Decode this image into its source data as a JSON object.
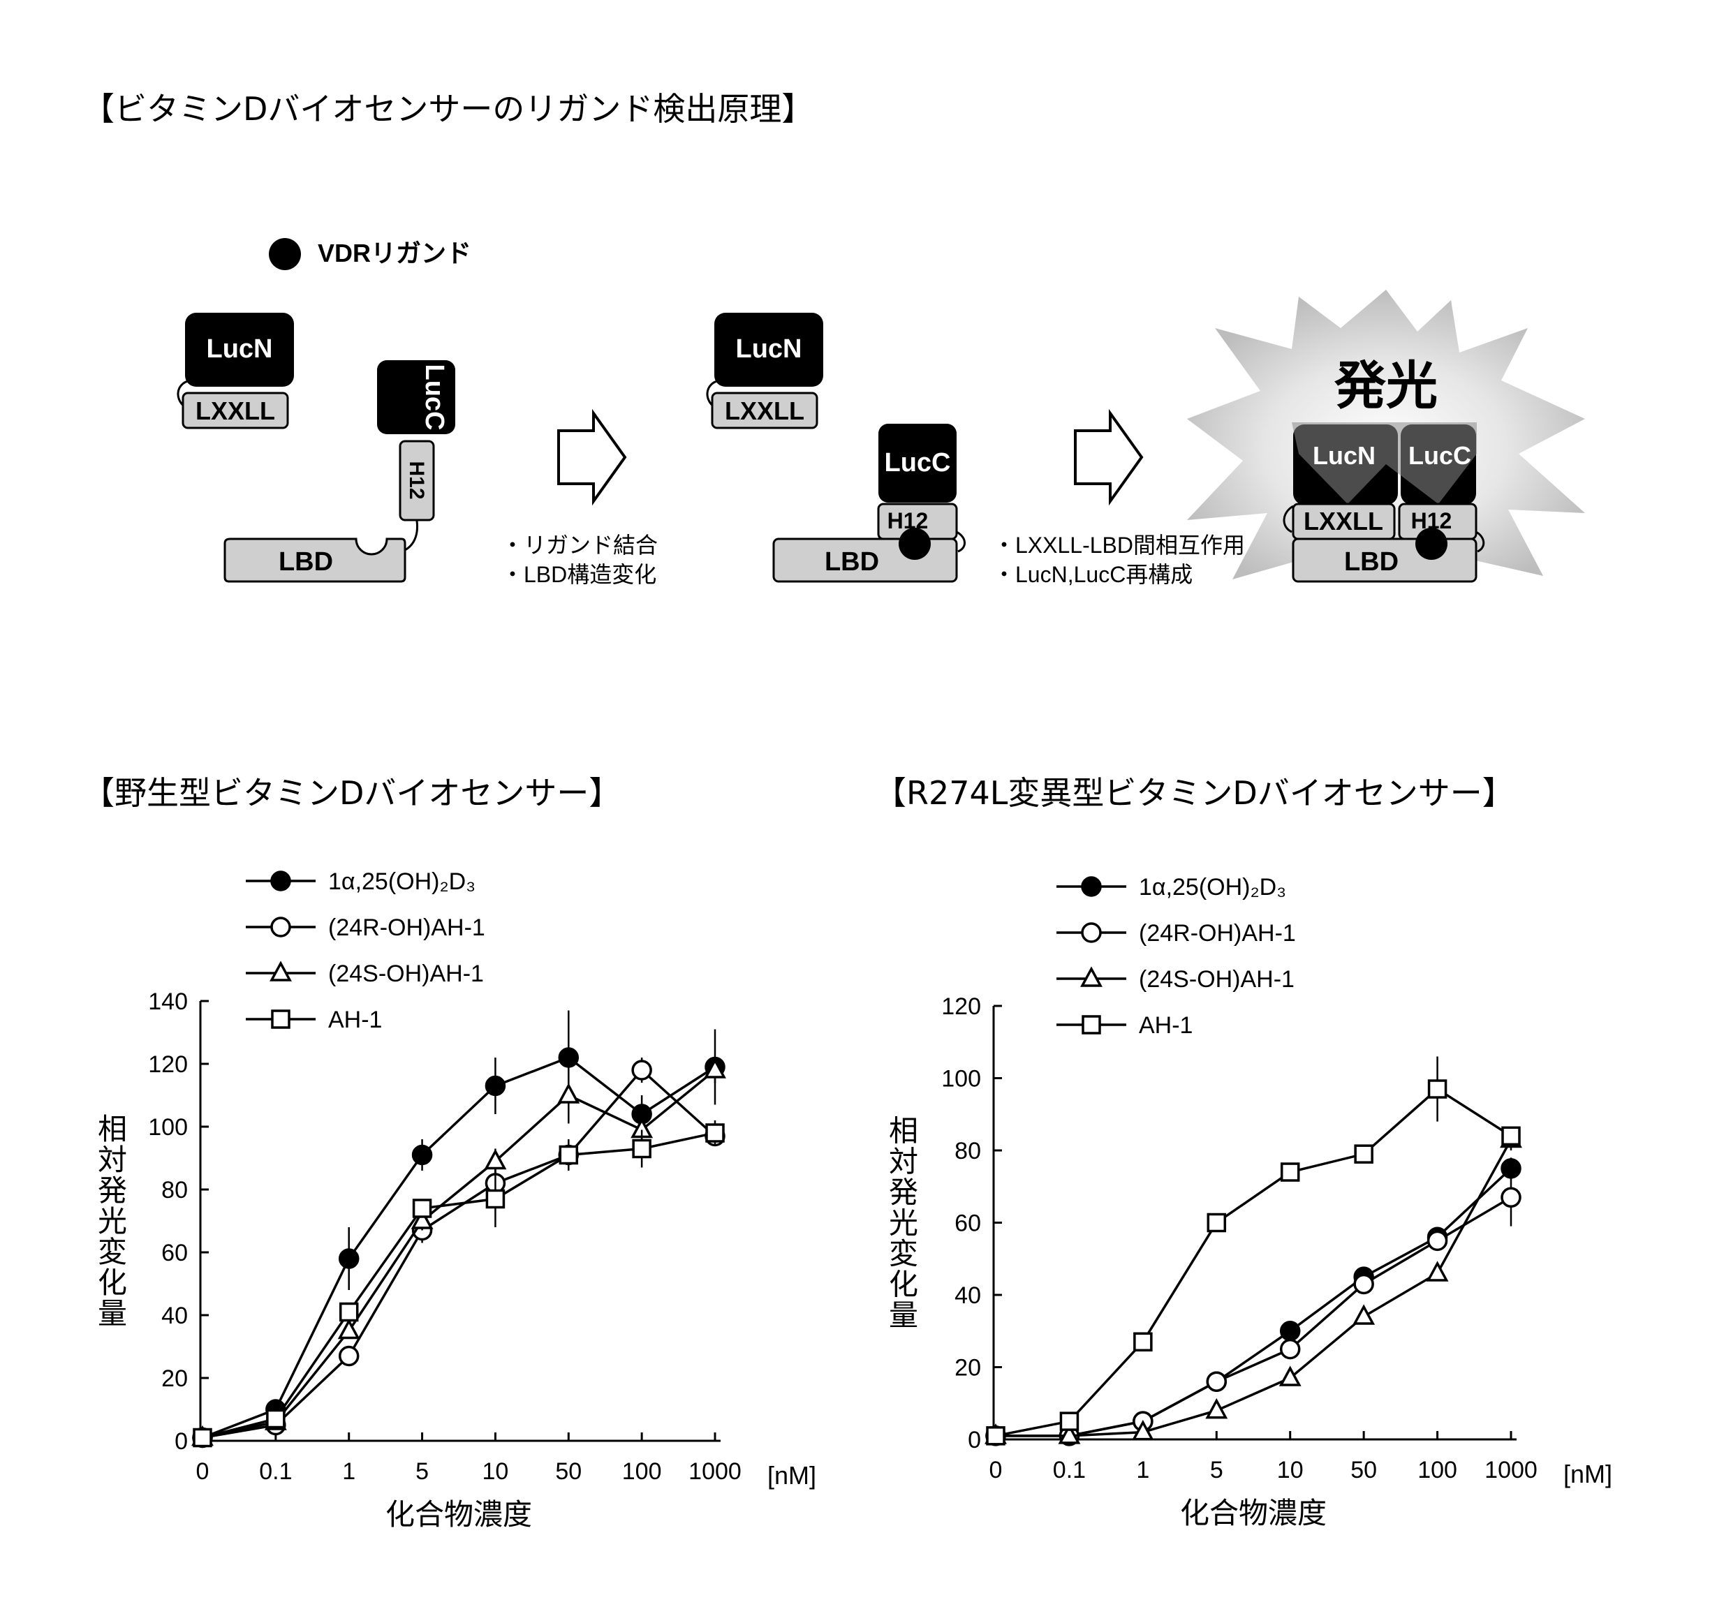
{
  "diagram": {
    "title": "【ビタミンDバイオセンサーのリガンド検出原理】",
    "legend_ligand": "VDRリガンド",
    "lucn": "LucN",
    "lucc": "LucC",
    "lxxll": "LXXLL",
    "h12": "H12",
    "lbd": "LBD",
    "step1_note1": "・リガンド結合",
    "step1_note2": "・LBD構造変化",
    "step2_note1": "・LXXLL-LBD間相互作用",
    "step2_note2": "・LucN,LucC再構成",
    "luminescence": "発光"
  },
  "chart_data": [
    {
      "type": "line",
      "title": "【野生型ビタミンDバイオセンサー】",
      "xlabel": "化合物濃度",
      "xunit": "[nM]",
      "ylabel": "相対発光変化量",
      "categories": [
        "0",
        "0.1",
        "1",
        "5",
        "10",
        "50",
        "100",
        "1000"
      ],
      "ylim": [
        0,
        140
      ],
      "yticks": [
        0,
        20,
        40,
        60,
        80,
        100,
        120,
        140
      ],
      "legend_position": "top-left",
      "grid": false,
      "series": [
        {
          "name": "1α,25(OH)₂D₃",
          "marker": "filled-circle",
          "values": [
            1,
            10,
            58,
            91,
            113,
            122,
            104,
            119
          ],
          "error": [
            0,
            2,
            10,
            5,
            9,
            15,
            6,
            12
          ]
        },
        {
          "name": "(24R-OH)AH-1",
          "marker": "open-circle",
          "values": [
            1,
            5,
            27,
            67,
            82,
            91,
            118,
            97
          ],
          "error": [
            0,
            1,
            2,
            4,
            6,
            4,
            4,
            3
          ]
        },
        {
          "name": "(24S-OH)AH-1",
          "marker": "open-triangle",
          "values": [
            1,
            6,
            35,
            70,
            89,
            110,
            99,
            118
          ],
          "error": [
            0,
            1,
            2,
            3,
            4,
            9,
            5,
            4
          ]
        },
        {
          "name": "AH-1",
          "marker": "open-square",
          "values": [
            1,
            7,
            41,
            74,
            77,
            91,
            93,
            98
          ],
          "error": [
            0,
            1,
            3,
            3,
            9,
            5,
            6,
            4
          ]
        }
      ]
    },
    {
      "type": "line",
      "title": "【R274L変異型ビタミンDバイオセンサー】",
      "xlabel": "化合物濃度",
      "xunit": "[nM]",
      "ylabel": "相対発光変化量",
      "categories": [
        "0",
        "0.1",
        "1",
        "5",
        "10",
        "50",
        "100",
        "1000"
      ],
      "ylim": [
        0,
        120
      ],
      "yticks": [
        0,
        20,
        40,
        60,
        80,
        100,
        120
      ],
      "legend_position": "top-left",
      "grid": false,
      "series": [
        {
          "name": "1α,25(OH)₂D₃",
          "marker": "filled-circle",
          "values": [
            1,
            1,
            5,
            16,
            30,
            45,
            56,
            75
          ],
          "error": [
            0,
            0,
            0,
            1,
            1,
            1,
            2,
            3
          ]
        },
        {
          "name": "(24R-OH)AH-1",
          "marker": "open-circle",
          "values": [
            1,
            1,
            5,
            16,
            25,
            43,
            55,
            67
          ],
          "error": [
            0,
            0,
            0,
            1,
            1,
            2,
            2,
            8
          ]
        },
        {
          "name": "(24S-OH)AH-1",
          "marker": "open-triangle",
          "values": [
            1,
            1,
            2,
            8,
            17,
            34,
            46,
            83
          ],
          "error": [
            0,
            0,
            0,
            1,
            1,
            2,
            2,
            3
          ]
        },
        {
          "name": "AH-1",
          "marker": "open-square",
          "values": [
            1,
            5,
            27,
            60,
            74,
            79,
            97,
            84
          ],
          "error": [
            0,
            0,
            1,
            1,
            1,
            2,
            9,
            2
          ]
        }
      ]
    }
  ]
}
